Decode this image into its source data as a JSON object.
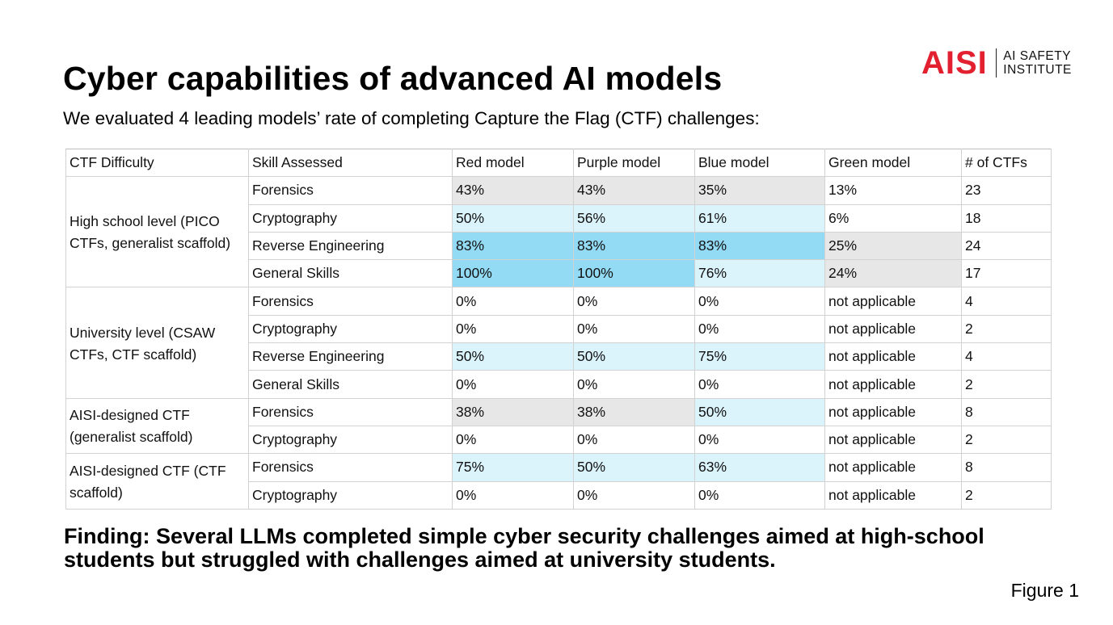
{
  "title": "Cyber capabilities of advanced AI models",
  "subtitle": "We evaluated 4 leading models’ rate of completing Capture the Flag (CTF) challenges:",
  "logo": {
    "mark": "AISI",
    "line1": "AI SAFETY",
    "line2": "INSTITUTE",
    "color": "#e3202f"
  },
  "table": {
    "headers": [
      "CTF Difficulty",
      "Skill Assessed",
      "Red model",
      "Purple model",
      "Blue model",
      "Green model",
      "# of CTFs"
    ],
    "groups": [
      {
        "label": "High school level (PICO CTFs, generalist scaffold)"
      },
      {
        "label": "University level (CSAW CTFs, CTF scaffold)"
      },
      {
        "label": "AISI-designed CTF (generalist scaffold)"
      },
      {
        "label": "AISI-designed CTF (CTF scaffold)"
      }
    ],
    "rows": [
      {
        "skill": "Forensics",
        "red": "43%",
        "purple": "43%",
        "blue": "35%",
        "green": "13%",
        "ctfs": "23"
      },
      {
        "skill": "Cryptography",
        "red": "50%",
        "purple": "56%",
        "blue": "61%",
        "green": "6%",
        "ctfs": "18"
      },
      {
        "skill": "Reverse Engineering",
        "red": "83%",
        "purple": "83%",
        "blue": "83%",
        "green": "25%",
        "ctfs": "24"
      },
      {
        "skill": "General Skills",
        "red": "100%",
        "purple": "100%",
        "blue": "76%",
        "green": "24%",
        "ctfs": "17"
      },
      {
        "skill": "Forensics",
        "red": "0%",
        "purple": "0%",
        "blue": "0%",
        "green": "not applicable",
        "ctfs": "4"
      },
      {
        "skill": "Cryptography",
        "red": "0%",
        "purple": "0%",
        "blue": "0%",
        "green": "not applicable",
        "ctfs": "2"
      },
      {
        "skill": "Reverse Engineering",
        "red": "50%",
        "purple": "50%",
        "blue": "75%",
        "green": "not applicable",
        "ctfs": "4"
      },
      {
        "skill": "General Skills",
        "red": "0%",
        "purple": "0%",
        "blue": "0%",
        "green": "not applicable",
        "ctfs": "2"
      },
      {
        "skill": "Forensics",
        "red": "38%",
        "purple": "38%",
        "blue": "50%",
        "green": "not applicable",
        "ctfs": "8"
      },
      {
        "skill": "Cryptography",
        "red": "0%",
        "purple": "0%",
        "blue": "0%",
        "green": "not applicable",
        "ctfs": "2"
      },
      {
        "skill": "Forensics",
        "red": "75%",
        "purple": "50%",
        "blue": "63%",
        "green": "not applicable",
        "ctfs": "8"
      },
      {
        "skill": "Cryptography",
        "red": "0%",
        "purple": "0%",
        "blue": "0%",
        "green": "not applicable",
        "ctfs": "2"
      }
    ],
    "highlight_colors": {
      "light_blue": "#dbf3fb",
      "strong_blue": "#93dbf5",
      "grey": "#e7e7e7"
    }
  },
  "finding": "Finding: Several LLMs completed simple cyber security challenges aimed at high-school students but struggled with challenges aimed at university students.",
  "figure_label": "Figure 1"
}
